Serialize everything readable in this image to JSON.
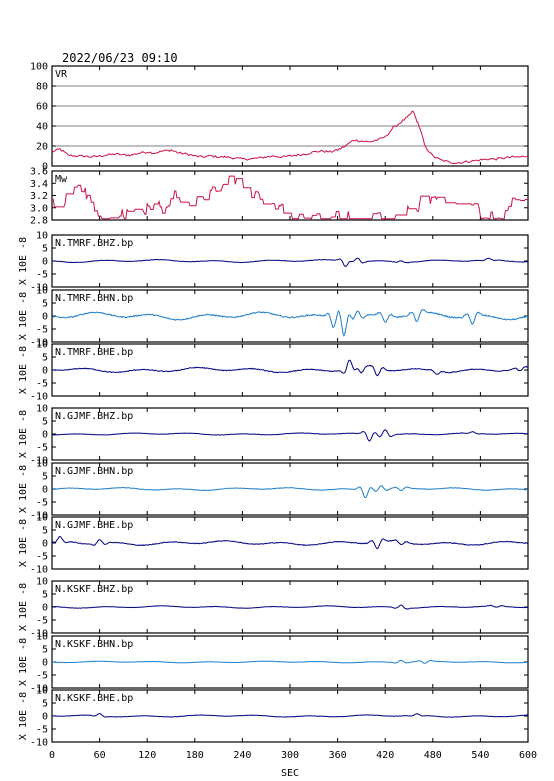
{
  "chart_data": {
    "type": "line",
    "title": "2022/06/23 09:10",
    "xlabel": "SEC",
    "xlim": [
      0,
      600
    ],
    "xticks": [
      "0",
      "60",
      "120",
      "180",
      "240",
      "300",
      "360",
      "420",
      "480",
      "540",
      "600"
    ],
    "colors": {
      "red": "#cc1144",
      "dark": "#000080",
      "light": "#1f7ec8"
    },
    "panels": [
      {
        "name": "VR",
        "ylabel": "",
        "ylim": [
          0,
          100
        ],
        "grid": true,
        "yticks": [
          "0",
          "20",
          "40",
          "60",
          "80",
          "100"
        ],
        "color": "red",
        "kind": "vr",
        "series": [
          [
            0,
            14
          ],
          [
            10,
            17
          ],
          [
            20,
            11
          ],
          [
            30,
            10
          ],
          [
            40,
            10
          ],
          [
            50,
            9
          ],
          [
            60,
            10
          ],
          [
            70,
            11
          ],
          [
            80,
            12
          ],
          [
            90,
            11
          ],
          [
            100,
            11
          ],
          [
            110,
            13
          ],
          [
            120,
            14
          ],
          [
            130,
            13
          ],
          [
            140,
            15
          ],
          [
            150,
            16
          ],
          [
            160,
            13
          ],
          [
            170,
            12
          ],
          [
            180,
            10
          ],
          [
            190,
            9
          ],
          [
            200,
            10
          ],
          [
            210,
            9
          ],
          [
            220,
            9
          ],
          [
            230,
            8
          ],
          [
            240,
            7
          ],
          [
            250,
            7
          ],
          [
            260,
            8
          ],
          [
            270,
            9
          ],
          [
            280,
            10
          ],
          [
            290,
            9
          ],
          [
            300,
            10
          ],
          [
            310,
            11
          ],
          [
            320,
            12
          ],
          [
            330,
            14
          ],
          [
            340,
            15
          ],
          [
            350,
            14
          ],
          [
            360,
            16
          ],
          [
            370,
            20
          ],
          [
            380,
            26
          ],
          [
            390,
            25
          ],
          [
            400,
            24
          ],
          [
            410,
            26
          ],
          [
            420,
            29
          ],
          [
            430,
            38
          ],
          [
            440,
            44
          ],
          [
            450,
            50
          ],
          [
            455,
            55
          ],
          [
            460,
            45
          ],
          [
            465,
            35
          ],
          [
            470,
            20
          ],
          [
            480,
            10
          ],
          [
            490,
            6
          ],
          [
            500,
            4
          ],
          [
            510,
            3
          ],
          [
            520,
            4
          ],
          [
            530,
            5
          ],
          [
            540,
            6
          ],
          [
            550,
            7
          ],
          [
            560,
            7
          ],
          [
            570,
            8
          ],
          [
            580,
            9
          ],
          [
            590,
            9
          ],
          [
            600,
            10
          ]
        ]
      },
      {
        "name": "Mw",
        "ylabel": "",
        "ylim": [
          2.8,
          3.6
        ],
        "grid": false,
        "yticks": [
          "2.8",
          "3.0",
          "3.2",
          "3.4",
          "3.6"
        ],
        "color": "red",
        "kind": "mw"
      },
      {
        "name": "N.TMRF.BHZ.bp",
        "ylabel": "X 10E -8",
        "ylim": [
          -10,
          10
        ],
        "yticks": [
          "-10",
          "-5",
          "0",
          "5",
          "10"
        ],
        "color": "dark",
        "amp": 0.5,
        "events": [
          [
            370,
            -2
          ],
          [
            385,
            1.5
          ],
          [
            440,
            0.5
          ],
          [
            550,
            0.6
          ]
        ]
      },
      {
        "name": "N.TMRF.BHN.bp",
        "ylabel": "X 10E -8",
        "ylim": [
          -10,
          10
        ],
        "yticks": [
          "-10",
          "-5",
          "0",
          "5",
          "10"
        ],
        "color": "light",
        "amp": 1.3,
        "events": [
          [
            355,
            -3.5
          ],
          [
            368,
            -6
          ],
          [
            385,
            2.5
          ],
          [
            420,
            -2.5
          ],
          [
            460,
            -3
          ],
          [
            530,
            -3
          ]
        ]
      },
      {
        "name": "N.TMRF.BHE.bp",
        "ylabel": "X 10E -8",
        "ylim": [
          -10,
          10
        ],
        "yticks": [
          "-10",
          "-5",
          "0",
          "5",
          "10"
        ],
        "color": "dark",
        "amp": 0.9,
        "events": [
          [
            375,
            3.5
          ],
          [
            390,
            -2
          ],
          [
            410,
            -2.5
          ],
          [
            485,
            -1
          ],
          [
            590,
            -1
          ]
        ]
      },
      {
        "name": "N.GJMF.BHZ.bp",
        "ylabel": "X 10E -8",
        "ylim": [
          -10,
          10
        ],
        "yticks": [
          "-10",
          "-5",
          "0",
          "5",
          "10"
        ],
        "color": "dark",
        "amp": 0.4,
        "events": [
          [
            400,
            -2.5
          ],
          [
            420,
            2
          ],
          [
            530,
            0.5
          ]
        ]
      },
      {
        "name": "N.GJMF.BHN.bp",
        "ylabel": "X 10E -8",
        "ylim": [
          -10,
          10
        ],
        "yticks": [
          "-10",
          "-5",
          "0",
          "5",
          "10"
        ],
        "color": "light",
        "amp": 0.5,
        "events": [
          [
            395,
            -3
          ],
          [
            415,
            1.5
          ],
          [
            440,
            -1
          ]
        ]
      },
      {
        "name": "N.GJMF.BHE.bp",
        "ylabel": "X 10E -8",
        "ylim": [
          -10,
          10
        ],
        "yticks": [
          "-10",
          "-5",
          "0",
          "5",
          "10"
        ],
        "color": "dark",
        "amp": 0.8,
        "events": [
          [
            10,
            1.5
          ],
          [
            60,
            1.5
          ],
          [
            410,
            -2.5
          ],
          [
            440,
            -1
          ]
        ]
      },
      {
        "name": "N.KSKF.BHZ.bp",
        "ylabel": "X 10E -8",
        "ylim": [
          -10,
          10
        ],
        "yticks": [
          "-10",
          "-5",
          "0",
          "5",
          "10"
        ],
        "color": "dark",
        "amp": 0.4,
        "events": [
          [
            440,
            1
          ],
          [
            560,
            -0.5
          ]
        ]
      },
      {
        "name": "N.KSKF.BHN.bp",
        "ylabel": "X 10E -8",
        "ylim": [
          -10,
          10
        ],
        "yticks": [
          "-10",
          "-5",
          "0",
          "5",
          "10"
        ],
        "color": "light",
        "amp": 0.3,
        "events": [
          [
            440,
            0.8
          ],
          [
            470,
            -0.8
          ]
        ]
      },
      {
        "name": "N.KSKF.BHE.bp",
        "ylabel": "X 10E -8",
        "ylim": [
          -10,
          10
        ],
        "yticks": [
          "-10",
          "-5",
          "0",
          "5",
          "10"
        ],
        "color": "dark",
        "amp": 0.4,
        "events": [
          [
            60,
            0.8
          ],
          [
            460,
            0.6
          ]
        ]
      }
    ]
  }
}
